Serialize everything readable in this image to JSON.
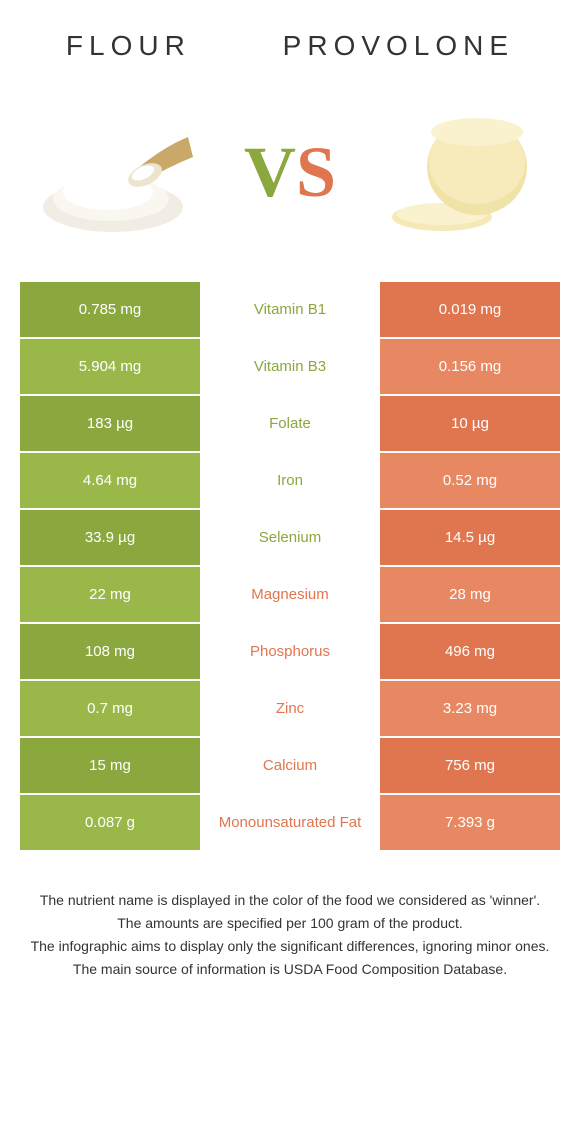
{
  "header": {
    "left": "FLOUR",
    "right": "PROVOLONE"
  },
  "vs": {
    "v": "V",
    "s": "S"
  },
  "colors": {
    "flour": "#8aa83e",
    "flour_alt": "#9ab84a",
    "provolone": "#e0764f",
    "provolone_alt": "#e88862",
    "mid_flour": "#8aa83e",
    "mid_provolone": "#e0764f"
  },
  "rows": [
    {
      "left": "0.785 mg",
      "mid": "Vitamin B1",
      "right": "0.019 mg",
      "winner": "flour"
    },
    {
      "left": "5.904 mg",
      "mid": "Vitamin B3",
      "right": "0.156 mg",
      "winner": "flour"
    },
    {
      "left": "183 µg",
      "mid": "Folate",
      "right": "10 µg",
      "winner": "flour"
    },
    {
      "left": "4.64 mg",
      "mid": "Iron",
      "right": "0.52 mg",
      "winner": "flour"
    },
    {
      "left": "33.9 µg",
      "mid": "Selenium",
      "right": "14.5 µg",
      "winner": "flour"
    },
    {
      "left": "22 mg",
      "mid": "Magnesium",
      "right": "28 mg",
      "winner": "provolone"
    },
    {
      "left": "108 mg",
      "mid": "Phosphorus",
      "right": "496 mg",
      "winner": "provolone"
    },
    {
      "left": "0.7 mg",
      "mid": "Zinc",
      "right": "3.23 mg",
      "winner": "provolone"
    },
    {
      "left": "15 mg",
      "mid": "Calcium",
      "right": "756 mg",
      "winner": "provolone"
    },
    {
      "left": "0.087 g",
      "mid": "Monounsaturated Fat",
      "right": "7.393 g",
      "winner": "provolone"
    }
  ],
  "footer": {
    "l1": "The nutrient name is displayed in the color of the food we considered as 'winner'.",
    "l2": "The amounts are specified per 100 gram of the product.",
    "l3": "The infographic aims to display only the significant differences, ignoring minor ones.",
    "l4": "The main source of information is USDA Food Composition Database."
  }
}
